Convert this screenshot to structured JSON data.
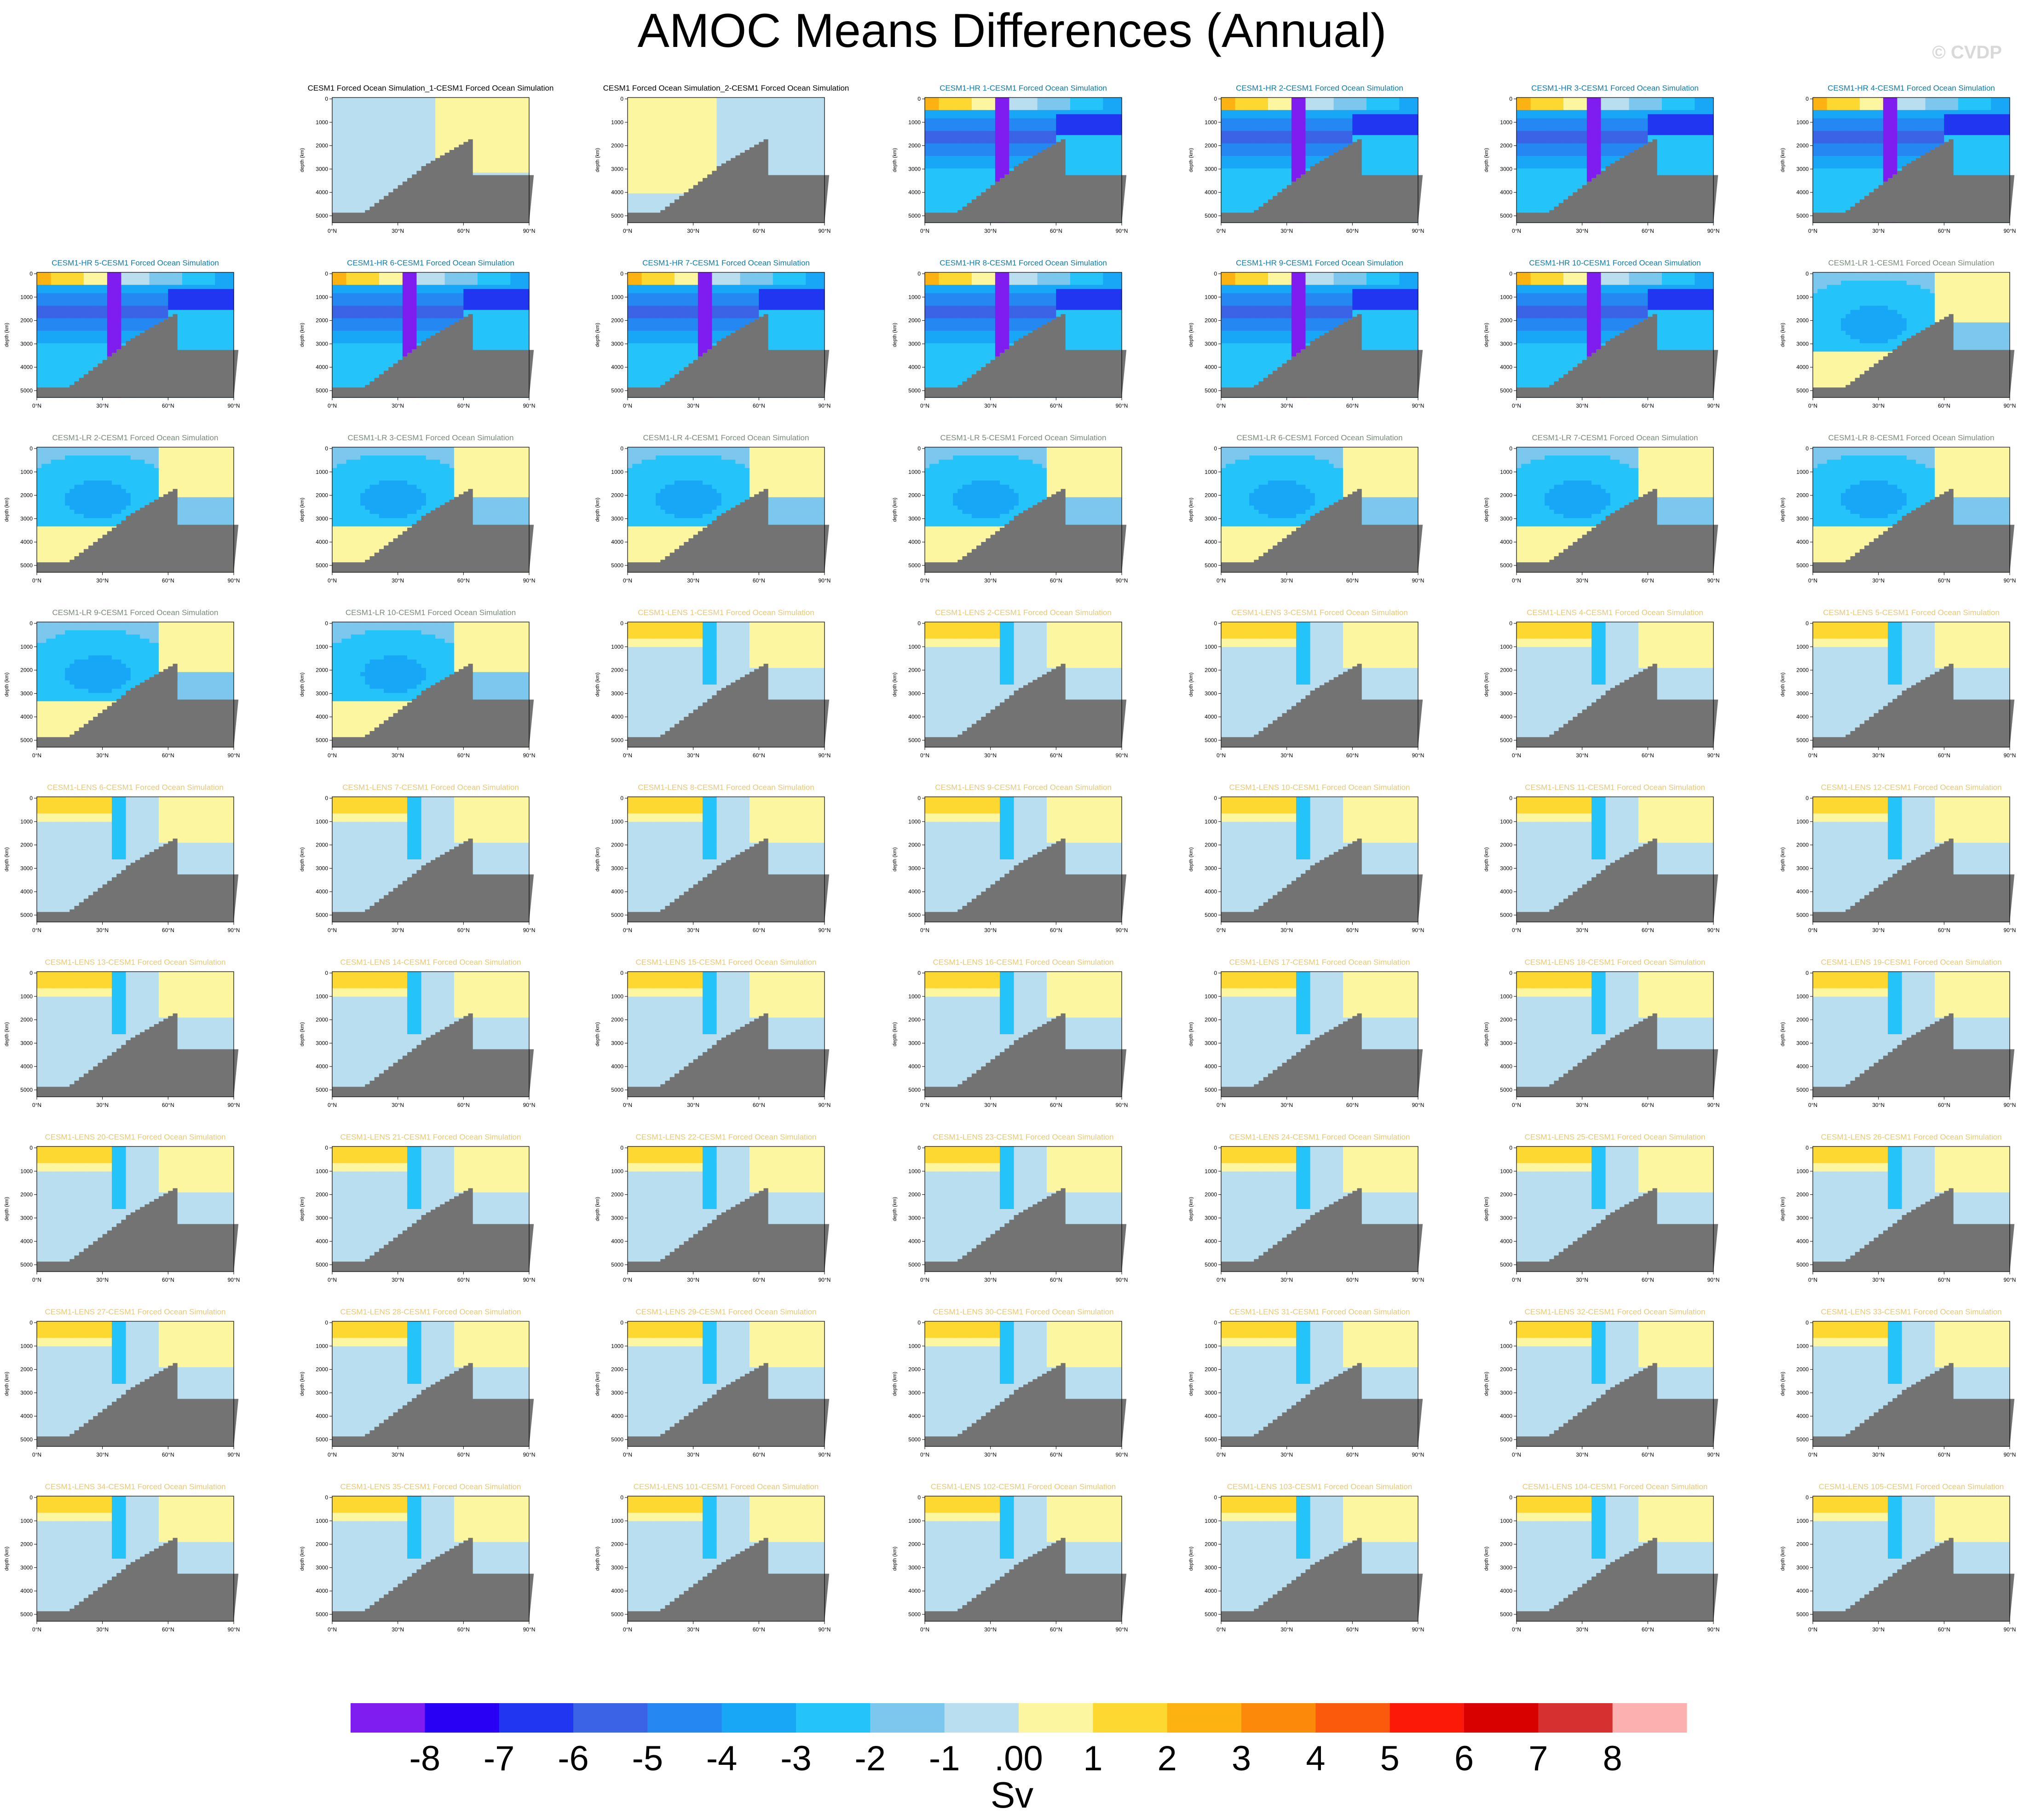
{
  "title": "AMOC Means Differences (Annual)",
  "watermark": "© CVDP",
  "colors": {
    "levels": [
      "#7f1df0",
      "#2a00f5",
      "#2036f0",
      "#3a63e6",
      "#2588f2",
      "#18a6f7",
      "#24c4fa",
      "#7cc7ee",
      "#b8def0",
      "#fdf6a0",
      "#fcd830",
      "#fcb312",
      "#fb8a0a",
      "#fb5a0d",
      "#fc1908",
      "#d90000",
      "#d63030",
      "#fdb0b0"
    ],
    "land": "#737373",
    "hr_title": "#117aa6",
    "lr_title": "#7a8a7a",
    "lens_title": "#e6c878",
    "forced_title": "#000000"
  },
  "chart_data": {
    "type": "contour",
    "panel_xlabel_ticks": [
      "0°N",
      "30°N",
      "60°N",
      "90°N"
    ],
    "panel_yticks": [
      "0",
      "1000",
      "2000",
      "3000",
      "4000",
      "5000"
    ],
    "panel_ylabel": "depth (km)",
    "colorbar": {
      "labels": [
        "-8",
        "-7",
        "-6",
        "-5",
        "-4",
        "-3",
        "-2",
        "-1",
        ".00",
        "1",
        "2",
        "3",
        "4",
        "5",
        "6",
        "7",
        "8"
      ],
      "units": "Sv"
    },
    "panels": [
      {
        "title": "",
        "group": "empty"
      },
      {
        "title": "CESM1 Forced Ocean Simulation_1-CESM1 Forced Ocean Simulation",
        "group": "forced"
      },
      {
        "title": "CESM1 Forced Ocean Simulation_2-CESM1 Forced Ocean Simulation",
        "group": "forced"
      },
      {
        "title": "CESM1-HR 1-CESM1 Forced Ocean Simulation",
        "group": "hr"
      },
      {
        "title": "CESM1-HR 2-CESM1 Forced Ocean Simulation",
        "group": "hr"
      },
      {
        "title": "CESM1-HR 3-CESM1 Forced Ocean Simulation",
        "group": "hr"
      },
      {
        "title": "CESM1-HR 4-CESM1 Forced Ocean Simulation",
        "group": "hr"
      },
      {
        "title": "CESM1-HR 5-CESM1 Forced Ocean Simulation",
        "group": "hr"
      },
      {
        "title": "CESM1-HR 6-CESM1 Forced Ocean Simulation",
        "group": "hr"
      },
      {
        "title": "CESM1-HR 7-CESM1 Forced Ocean Simulation",
        "group": "hr"
      },
      {
        "title": "CESM1-HR 8-CESM1 Forced Ocean Simulation",
        "group": "hr"
      },
      {
        "title": "CESM1-HR 9-CESM1 Forced Ocean Simulation",
        "group": "hr"
      },
      {
        "title": "CESM1-HR 10-CESM1 Forced Ocean Simulation",
        "group": "hr"
      },
      {
        "title": "CESM1-LR 1-CESM1 Forced Ocean Simulation",
        "group": "lr"
      },
      {
        "title": "CESM1-LR 2-CESM1 Forced Ocean Simulation",
        "group": "lr"
      },
      {
        "title": "CESM1-LR 3-CESM1 Forced Ocean Simulation",
        "group": "lr"
      },
      {
        "title": "CESM1-LR 4-CESM1 Forced Ocean Simulation",
        "group": "lr"
      },
      {
        "title": "CESM1-LR 5-CESM1 Forced Ocean Simulation",
        "group": "lr"
      },
      {
        "title": "CESM1-LR 6-CESM1 Forced Ocean Simulation",
        "group": "lr"
      },
      {
        "title": "CESM1-LR 7-CESM1 Forced Ocean Simulation",
        "group": "lr"
      },
      {
        "title": "CESM1-LR 8-CESM1 Forced Ocean Simulation",
        "group": "lr"
      },
      {
        "title": "CESM1-LR 9-CESM1 Forced Ocean Simulation",
        "group": "lr"
      },
      {
        "title": "CESM1-LR 10-CESM1 Forced Ocean Simulation",
        "group": "lr"
      },
      {
        "title": "CESM1-LENS 1-CESM1 Forced Ocean Simulation",
        "group": "lens"
      },
      {
        "title": "CESM1-LENS 2-CESM1 Forced Ocean Simulation",
        "group": "lens"
      },
      {
        "title": "CESM1-LENS 3-CESM1 Forced Ocean Simulation",
        "group": "lens"
      },
      {
        "title": "CESM1-LENS 4-CESM1 Forced Ocean Simulation",
        "group": "lens"
      },
      {
        "title": "CESM1-LENS 5-CESM1 Forced Ocean Simulation",
        "group": "lens"
      },
      {
        "title": "CESM1-LENS 6-CESM1 Forced Ocean Simulation",
        "group": "lens"
      },
      {
        "title": "CESM1-LENS 7-CESM1 Forced Ocean Simulation",
        "group": "lens"
      },
      {
        "title": "CESM1-LENS 8-CESM1 Forced Ocean Simulation",
        "group": "lens"
      },
      {
        "title": "CESM1-LENS 9-CESM1 Forced Ocean Simulation",
        "group": "lens"
      },
      {
        "title": "CESM1-LENS 10-CESM1 Forced Ocean Simulation",
        "group": "lens"
      },
      {
        "title": "CESM1-LENS 11-CESM1 Forced Ocean Simulation",
        "group": "lens"
      },
      {
        "title": "CESM1-LENS 12-CESM1 Forced Ocean Simulation",
        "group": "lens"
      },
      {
        "title": "CESM1-LENS 13-CESM1 Forced Ocean Simulation",
        "group": "lens"
      },
      {
        "title": "CESM1-LENS 14-CESM1 Forced Ocean Simulation",
        "group": "lens"
      },
      {
        "title": "CESM1-LENS 15-CESM1 Forced Ocean Simulation",
        "group": "lens"
      },
      {
        "title": "CESM1-LENS 16-CESM1 Forced Ocean Simulation",
        "group": "lens"
      },
      {
        "title": "CESM1-LENS 17-CESM1 Forced Ocean Simulation",
        "group": "lens"
      },
      {
        "title": "CESM1-LENS 18-CESM1 Forced Ocean Simulation",
        "group": "lens"
      },
      {
        "title": "CESM1-LENS 19-CESM1 Forced Ocean Simulation",
        "group": "lens"
      },
      {
        "title": "CESM1-LENS 20-CESM1 Forced Ocean Simulation",
        "group": "lens"
      },
      {
        "title": "CESM1-LENS 21-CESM1 Forced Ocean Simulation",
        "group": "lens"
      },
      {
        "title": "CESM1-LENS 22-CESM1 Forced Ocean Simulation",
        "group": "lens"
      },
      {
        "title": "CESM1-LENS 23-CESM1 Forced Ocean Simulation",
        "group": "lens"
      },
      {
        "title": "CESM1-LENS 24-CESM1 Forced Ocean Simulation",
        "group": "lens"
      },
      {
        "title": "CESM1-LENS 25-CESM1 Forced Ocean Simulation",
        "group": "lens"
      },
      {
        "title": "CESM1-LENS 26-CESM1 Forced Ocean Simulation",
        "group": "lens"
      },
      {
        "title": "CESM1-LENS 27-CESM1 Forced Ocean Simulation",
        "group": "lens"
      },
      {
        "title": "CESM1-LENS 28-CESM1 Forced Ocean Simulation",
        "group": "lens"
      },
      {
        "title": "CESM1-LENS 29-CESM1 Forced Ocean Simulation",
        "group": "lens"
      },
      {
        "title": "CESM1-LENS 30-CESM1 Forced Ocean Simulation",
        "group": "lens"
      },
      {
        "title": "CESM1-LENS 31-CESM1 Forced Ocean Simulation",
        "group": "lens"
      },
      {
        "title": "CESM1-LENS 32-CESM1 Forced Ocean Simulation",
        "group": "lens"
      },
      {
        "title": "CESM1-LENS 33-CESM1 Forced Ocean Simulation",
        "group": "lens"
      },
      {
        "title": "CESM1-LENS 34-CESM1 Forced Ocean Simulation",
        "group": "lens"
      },
      {
        "title": "CESM1-LENS 35-CESM1 Forced Ocean Simulation",
        "group": "lens"
      },
      {
        "title": "CESM1-LENS 101-CESM1 Forced Ocean Simulation",
        "group": "lens"
      },
      {
        "title": "CESM1-LENS 102-CESM1 Forced Ocean Simulation",
        "group": "lens"
      },
      {
        "title": "CESM1-LENS 103-CESM1 Forced Ocean Simulation",
        "group": "lens"
      },
      {
        "title": "CESM1-LENS 104-CESM1 Forced Ocean Simulation",
        "group": "lens"
      },
      {
        "title": "CESM1-LENS 105-CESM1 Forced Ocean Simulation",
        "group": "lens"
      }
    ]
  }
}
